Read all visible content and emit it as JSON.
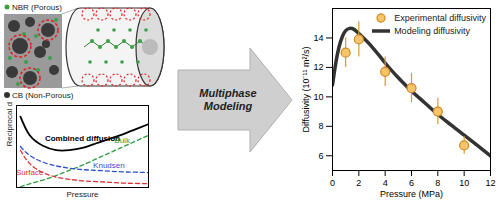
{
  "diagram": {
    "labels": {
      "matrix": "NBR (Porous)",
      "filler": "CB (Non-Porous)"
    },
    "arrow_text": [
      "Multiphase",
      "Modeling"
    ]
  },
  "chart_data": [
    {
      "type": "line",
      "xlabel": "Pressure",
      "ylabel": "Reciprocal diffusivity",
      "x": [
        0.3,
        1,
        2,
        3,
        4,
        5,
        6,
        7,
        8,
        9,
        10
      ],
      "series": [
        {
          "name": "Combined diffusion",
          "color": "#000000",
          "line_style": "solid",
          "values": [
            9.5,
            7.0,
            5.6,
            5.0,
            5.0,
            5.3,
            5.9,
            6.5,
            7.1,
            7.8,
            8.5
          ]
        },
        {
          "name": "Bulk",
          "color": "#2e9e3e",
          "line_style": "dashed",
          "values": [
            0.1,
            0.5,
            1.0,
            1.6,
            2.3,
            3.0,
            3.8,
            4.6,
            5.4,
            6.2,
            7.0
          ]
        },
        {
          "name": "Knudsen",
          "color": "#3050d0",
          "line_style": "dashed",
          "values": [
            5.5,
            4.3,
            3.4,
            2.9,
            2.6,
            2.4,
            2.3,
            2.2,
            2.1,
            2.05,
            2.0
          ]
        },
        {
          "name": "Surface",
          "color": "#e03030",
          "line_style": "dashed",
          "values": [
            5.0,
            3.2,
            2.0,
            1.4,
            1.1,
            0.9,
            0.8,
            0.7,
            0.6,
            0.55,
            0.5
          ]
        }
      ],
      "xlim": [
        0,
        10
      ],
      "ylim": [
        0,
        11
      ],
      "tick_labels": false
    },
    {
      "type": "line",
      "xlabel": "Pressure (MPa)",
      "ylabel": "Diffusivity (10⁻¹¹ m²/s)",
      "xlim": [
        0,
        12
      ],
      "xticks": [
        0,
        2,
        4,
        6,
        8,
        10,
        12
      ],
      "ylim": [
        5,
        16
      ],
      "yticks": [
        6,
        8,
        10,
        12,
        14
      ],
      "legend": "upper right",
      "series": [
        {
          "name": "Experimental diffusivity",
          "type": "scatter",
          "marker": "circle",
          "color": "#f7c46c",
          "x": [
            1,
            2,
            4,
            6,
            8,
            10
          ],
          "values": [
            13.0,
            13.9,
            11.7,
            10.6,
            9.0,
            6.7
          ],
          "errors": [
            1.0,
            1.2,
            1.0,
            1.0,
            0.9,
            0.6
          ]
        },
        {
          "name": "Modeling diffusivity",
          "type": "line",
          "color": "#333333",
          "x": [
            0,
            0.25,
            0.5,
            0.75,
            1,
            1.3,
            1.6,
            2,
            3,
            4,
            5,
            6,
            7,
            8,
            9,
            10,
            11,
            12
          ],
          "values": [
            10.8,
            12.3,
            13.4,
            14.1,
            14.5,
            14.65,
            14.6,
            14.3,
            13.4,
            12.3,
            11.3,
            10.4,
            9.6,
            8.8,
            8.1,
            7.4,
            6.7,
            6.0
          ]
        }
      ]
    }
  ]
}
